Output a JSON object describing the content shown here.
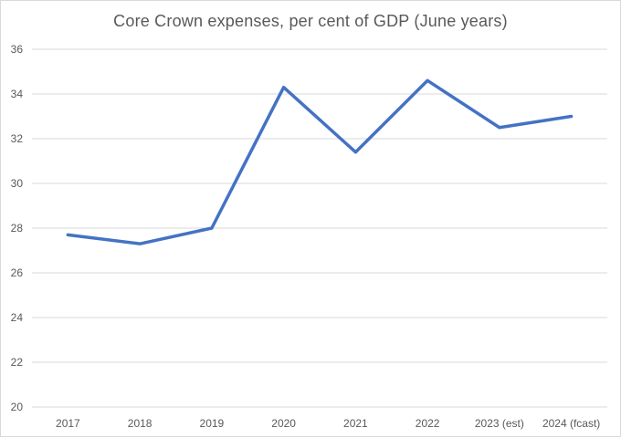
{
  "chart_data": {
    "type": "line",
    "title": "Core Crown expenses, per cent of GDP (June years)",
    "categories": [
      "2017",
      "2018",
      "2019",
      "2020",
      "2021",
      "2022",
      "2023 (est)",
      "2024 (fcast)"
    ],
    "series": [
      {
        "name": "Core Crown expenses",
        "values": [
          27.7,
          27.3,
          28.0,
          34.3,
          31.4,
          34.6,
          32.5,
          33.0
        ],
        "color": "#4472c4"
      }
    ],
    "xlabel": "",
    "ylabel": "",
    "ylim": [
      20,
      36
    ],
    "yticks": [
      "20",
      "22",
      "24",
      "26",
      "28",
      "30",
      "32",
      "34",
      "36"
    ],
    "grid": true,
    "gridColor": "#d9d9d9"
  }
}
